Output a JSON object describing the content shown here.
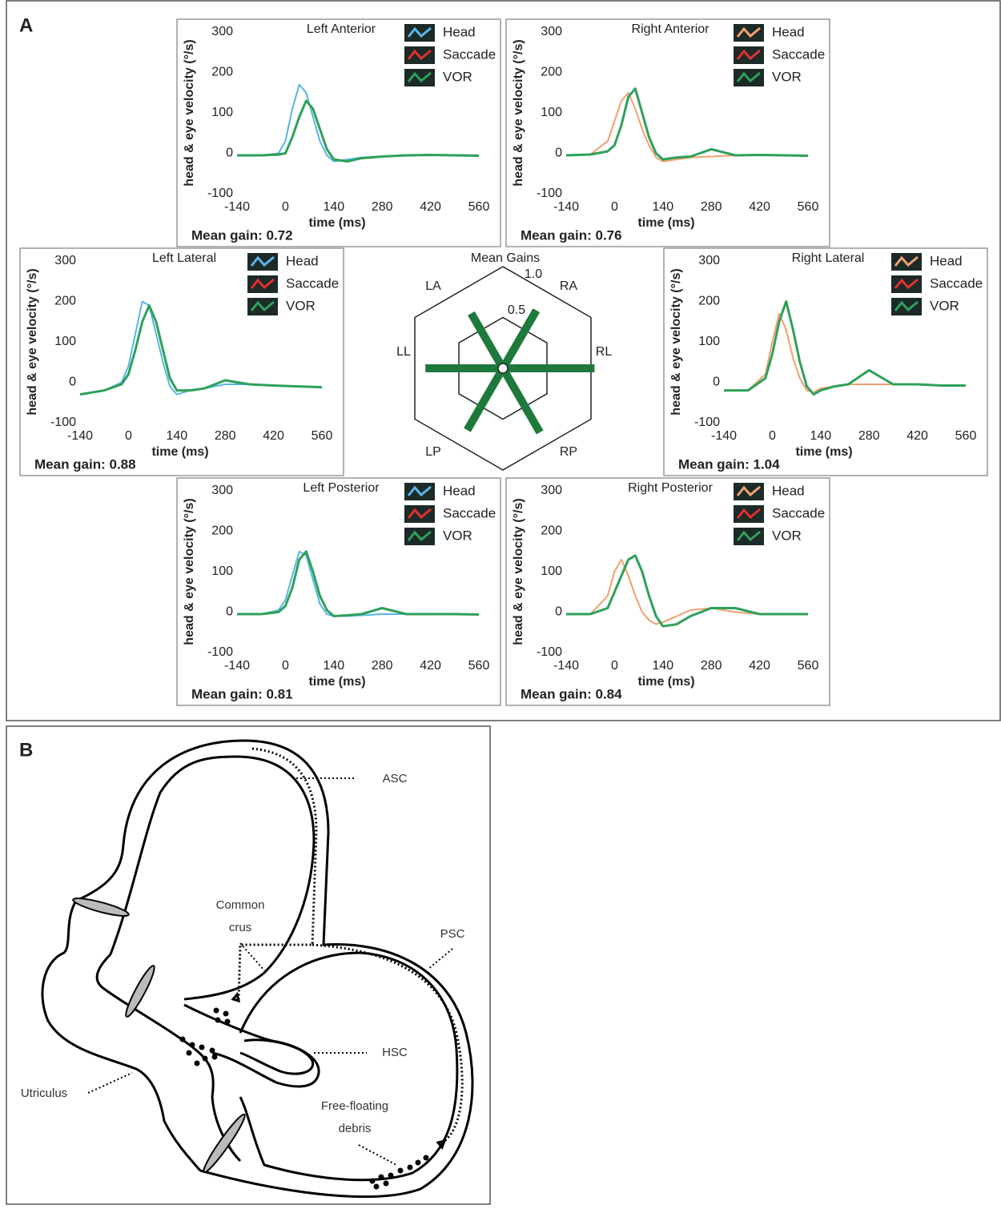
{
  "figure": {
    "panel_a": "A",
    "panel_b": "B"
  },
  "chart_data": [
    {
      "type": "line",
      "title": "Left Anterior",
      "xlabel": "time (ms)",
      "ylabel": "head & eye velocity (°/s)",
      "annotation": "Mean gain: 0.72",
      "x": [
        -140,
        -70,
        -20,
        0,
        20,
        40,
        60,
        80,
        100,
        120,
        140,
        180,
        220,
        280,
        350,
        420,
        490,
        560
      ],
      "series": [
        {
          "name": "Head",
          "color": "#5ab4e6",
          "values": [
            -5,
            -5,
            0,
            30,
            110,
            170,
            150,
            90,
            30,
            -5,
            -20,
            -15,
            -10,
            -8,
            -5,
            -4,
            -4,
            -5
          ]
        },
        {
          "name": "Saccade",
          "color": "#e03030",
          "values": [
            null,
            null,
            null,
            null,
            null,
            null,
            null,
            null,
            null,
            null,
            null,
            null,
            null,
            null,
            null,
            null,
            null,
            null
          ]
        },
        {
          "name": "VOR",
          "color": "#2ea05a",
          "values": [
            -5,
            -5,
            -3,
            0,
            40,
            90,
            130,
            110,
            60,
            10,
            -15,
            -20,
            -12,
            -8,
            -5,
            -4,
            -5,
            -6
          ]
        }
      ],
      "xlim": [
        -140,
        560
      ],
      "ylim": [
        -100,
        300
      ],
      "xticks": [
        -140,
        0,
        140,
        280,
        420,
        560
      ],
      "yticks": [
        -100,
        0,
        100,
        200,
        300
      ]
    },
    {
      "type": "line",
      "title": "Right Anterior",
      "xlabel": "time (ms)",
      "ylabel": "head & eye velocity (°/s)",
      "annotation": "Mean gain: 0.76",
      "x": [
        -140,
        -70,
        -20,
        0,
        20,
        40,
        60,
        80,
        100,
        120,
        140,
        180,
        220,
        280,
        350,
        420,
        490,
        560
      ],
      "series": [
        {
          "name": "Head",
          "color": "#f0a070",
          "values": [
            -5,
            -3,
            30,
            80,
            130,
            150,
            110,
            60,
            20,
            -10,
            -20,
            -15,
            -10,
            -8,
            -5,
            -4,
            -5,
            -6
          ]
        },
        {
          "name": "Saccade",
          "color": "#e03030",
          "values": [
            null,
            null,
            null,
            null,
            null,
            null,
            null,
            null,
            null,
            null,
            null,
            null,
            null,
            null,
            null,
            null,
            null,
            null
          ]
        },
        {
          "name": "VOR",
          "color": "#2ea05a",
          "values": [
            -5,
            -3,
            5,
            20,
            70,
            140,
            160,
            100,
            40,
            0,
            -15,
            -10,
            -8,
            10,
            -5,
            -4,
            -5,
            -6
          ]
        }
      ],
      "xlim": [
        -140,
        560
      ],
      "ylim": [
        -100,
        300
      ],
      "xticks": [
        -140,
        0,
        140,
        280,
        420,
        560
      ],
      "yticks": [
        -100,
        0,
        100,
        200,
        300
      ]
    },
    {
      "type": "line",
      "title": "Left Lateral",
      "xlabel": "time (ms)",
      "ylabel": "head & eye velocity (°/s)",
      "annotation": "Mean gain: 0.88",
      "x": [
        -140,
        -70,
        -20,
        0,
        20,
        40,
        60,
        80,
        100,
        120,
        140,
        180,
        220,
        280,
        350,
        420,
        490,
        560
      ],
      "series": [
        {
          "name": "Head",
          "color": "#5ab4e6",
          "values": [
            -30,
            -20,
            0,
            40,
            120,
            200,
            190,
            120,
            50,
            -10,
            -30,
            -20,
            -15,
            -5,
            -5,
            -8,
            -10,
            -12
          ]
        },
        {
          "name": "Saccade",
          "color": "#e03030",
          "values": [
            null,
            null,
            null,
            null,
            null,
            null,
            null,
            null,
            null,
            null,
            null,
            null,
            null,
            null,
            null,
            null,
            null,
            null
          ]
        },
        {
          "name": "VOR",
          "color": "#2ea05a",
          "values": [
            -30,
            -20,
            -5,
            20,
            80,
            150,
            190,
            150,
            80,
            10,
            -20,
            -20,
            -15,
            5,
            -5,
            -8,
            -10,
            -12
          ]
        }
      ],
      "xlim": [
        -140,
        560
      ],
      "ylim": [
        -100,
        300
      ],
      "xticks": [
        -140,
        0,
        140,
        280,
        420,
        560
      ],
      "yticks": [
        -100,
        0,
        100,
        200,
        300
      ]
    },
    {
      "type": "line",
      "title": "Right Lateral",
      "xlabel": "time (ms)",
      "ylabel": "head & eye velocity (°/s)",
      "annotation": "Mean gain: 1.04",
      "x": [
        -140,
        -70,
        -20,
        0,
        20,
        40,
        60,
        80,
        100,
        120,
        140,
        180,
        220,
        280,
        350,
        420,
        490,
        560
      ],
      "series": [
        {
          "name": "Head",
          "color": "#f0a070",
          "values": [
            -20,
            -20,
            20,
            100,
            170,
            130,
            60,
            10,
            -20,
            -25,
            -15,
            -10,
            -5,
            -5,
            -5,
            -5,
            -8,
            -8
          ]
        },
        {
          "name": "Saccade",
          "color": "#e03030",
          "values": [
            null,
            null,
            null,
            null,
            null,
            null,
            null,
            null,
            null,
            null,
            null,
            null,
            null,
            null,
            null,
            null,
            null,
            null
          ]
        },
        {
          "name": "VOR",
          "color": "#2ea05a",
          "values": [
            -20,
            -20,
            10,
            70,
            150,
            200,
            130,
            50,
            -10,
            -30,
            -20,
            -10,
            -5,
            30,
            -5,
            -5,
            -8,
            -8
          ]
        }
      ],
      "xlim": [
        -140,
        560
      ],
      "ylim": [
        -100,
        300
      ],
      "xticks": [
        -140,
        0,
        140,
        280,
        420,
        560
      ],
      "yticks": [
        -100,
        0,
        100,
        200,
        300
      ]
    },
    {
      "type": "line",
      "title": "Left Posterior",
      "xlabel": "time (ms)",
      "ylabel": "head & eye velocity (°/s)",
      "annotation": "Mean gain: 0.81",
      "x": [
        -140,
        -70,
        -20,
        0,
        20,
        40,
        60,
        80,
        100,
        120,
        140,
        180,
        220,
        280,
        350,
        420,
        490,
        560
      ],
      "series": [
        {
          "name": "Head",
          "color": "#5ab4e6",
          "values": [
            -5,
            -5,
            5,
            30,
            90,
            150,
            140,
            80,
            20,
            -5,
            -10,
            -10,
            -8,
            -5,
            -5,
            -5,
            -5,
            -6
          ]
        },
        {
          "name": "Saccade",
          "color": "#e03030",
          "values": [
            null,
            null,
            null,
            null,
            null,
            null,
            null,
            null,
            null,
            null,
            null,
            null,
            null,
            null,
            null,
            null,
            null,
            null
          ]
        },
        {
          "name": "VOR",
          "color": "#2ea05a",
          "values": [
            -5,
            -5,
            0,
            15,
            60,
            130,
            150,
            100,
            40,
            5,
            -10,
            -8,
            -5,
            10,
            -5,
            -5,
            -5,
            -6
          ]
        }
      ],
      "xlim": [
        -140,
        560
      ],
      "ylim": [
        -100,
        300
      ],
      "xticks": [
        -140,
        0,
        140,
        280,
        420,
        560
      ],
      "yticks": [
        -100,
        0,
        100,
        200,
        300
      ]
    },
    {
      "type": "line",
      "title": "Right Posterior",
      "xlabel": "time (ms)",
      "ylabel": "head & eye velocity (°/s)",
      "annotation": "Mean gain: 0.84",
      "x": [
        -140,
        -70,
        -20,
        0,
        20,
        40,
        60,
        80,
        100,
        120,
        140,
        180,
        220,
        280,
        350,
        420,
        490,
        560
      ],
      "series": [
        {
          "name": "Head",
          "color": "#f0a070",
          "values": [
            -5,
            -5,
            40,
            100,
            130,
            90,
            40,
            0,
            -20,
            -30,
            -25,
            -10,
            5,
            10,
            0,
            -5,
            -5,
            -5
          ]
        },
        {
          "name": "Saccade",
          "color": "#e03030",
          "values": [
            null,
            null,
            null,
            null,
            null,
            null,
            null,
            null,
            null,
            null,
            null,
            null,
            null,
            null,
            null,
            null,
            null,
            null
          ]
        },
        {
          "name": "VOR",
          "color": "#2ea05a",
          "values": [
            -5,
            -5,
            10,
            50,
            90,
            130,
            140,
            100,
            40,
            -10,
            -35,
            -30,
            -10,
            10,
            10,
            -5,
            -5,
            -5
          ]
        }
      ],
      "xlim": [
        -140,
        560
      ],
      "ylim": [
        -100,
        300
      ],
      "xticks": [
        -140,
        0,
        140,
        280,
        420,
        560
      ],
      "yticks": [
        -100,
        0,
        100,
        200,
        300
      ]
    },
    {
      "type": "radar",
      "title": "Mean Gains",
      "categories": [
        "LA",
        "RA",
        "RL",
        "RP",
        "LP",
        "LL"
      ],
      "values": [
        0.72,
        0.76,
        1.04,
        0.84,
        0.81,
        0.88
      ],
      "color": "#1e7a3c",
      "rlim": [
        0,
        1
      ],
      "rticks": [
        0.5,
        {
          "value": 1,
          "label": "1.0"
        }
      ]
    }
  ],
  "diagram": {
    "labels": {
      "asc": "ASC",
      "common": [
        "Common",
        "crus"
      ],
      "psc": "PSC",
      "hsc": "HSC",
      "utriculus": "Utriculus",
      "debris": [
        "Free-floating",
        "debris"
      ]
    }
  }
}
